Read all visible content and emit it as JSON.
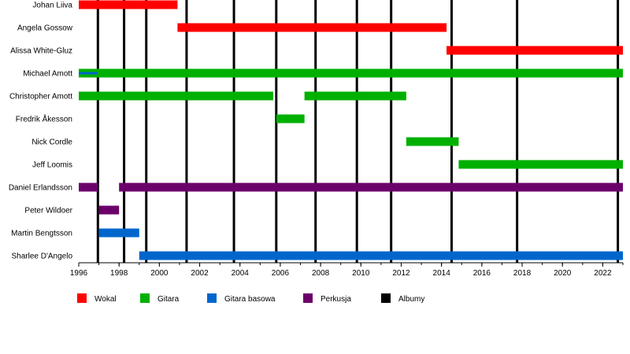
{
  "chart_data": {
    "type": "timeline",
    "members": [
      "Johan Liiva",
      "Angela Gossow",
      "Alissa White-Gluz",
      "Michael Amott",
      "Christopher Amott",
      "Fredrik Åkesson",
      "Nick Cordle",
      "Jeff Loomis",
      "Daniel Erlandsson",
      "Peter Wildoer",
      "Martin Bengtsson",
      "Sharlee D'Angelo"
    ],
    "xlim": [
      1996,
      2023
    ],
    "x_ticks": [
      1996,
      1998,
      2000,
      2002,
      2004,
      2006,
      2008,
      2010,
      2012,
      2014,
      2016,
      2018,
      2020,
      2022
    ],
    "x_tick_labels": [
      "1996",
      "1998",
      "2000",
      "2002",
      "2004",
      "2006",
      "2008",
      "2010",
      "2012",
      "2014",
      "2016",
      "2018",
      "2020",
      "2022"
    ],
    "colors": {
      "Wokal": "#ff0000",
      "Gitara": "#00b000",
      "Gitara basowa": "#0066cc",
      "Perkusja": "#6b006b",
      "Albumy": "#000000"
    },
    "legend": [
      "Wokal",
      "Gitara",
      "Gitara basowa",
      "Perkusja",
      "Albumy"
    ],
    "albums": [
      1996.95,
      1998.25,
      1999.35,
      2001.35,
      2003.7,
      2005.8,
      2007.75,
      2009.8,
      2011.5,
      2014.5,
      2017.75,
      2022.75
    ],
    "bars": [
      {
        "member": 0,
        "role": "Wokal",
        "start": 1996.0,
        "end": 2000.9
      },
      {
        "member": 1,
        "role": "Wokal",
        "start": 2000.9,
        "end": 2014.25
      },
      {
        "member": 2,
        "role": "Wokal",
        "start": 2014.25,
        "end": 2023.0
      },
      {
        "member": 3,
        "role": "Gitara",
        "start": 1996.0,
        "end": 2023.0
      },
      {
        "member": 3,
        "role": "Gitara basowa",
        "start": 1996.0,
        "end": 1996.95,
        "thin": true
      },
      {
        "member": 4,
        "role": "Gitara",
        "start": 1996.0,
        "end": 2005.65
      },
      {
        "member": 4,
        "role": "Gitara",
        "start": 2007.2,
        "end": 2012.25
      },
      {
        "member": 5,
        "role": "Gitara",
        "start": 2005.8,
        "end": 2007.2
      },
      {
        "member": 6,
        "role": "Gitara",
        "start": 2012.25,
        "end": 2014.85
      },
      {
        "member": 7,
        "role": "Gitara",
        "start": 2014.85,
        "end": 2023.0
      },
      {
        "member": 8,
        "role": "Perkusja",
        "start": 1996.0,
        "end": 1996.95
      },
      {
        "member": 8,
        "role": "Perkusja",
        "start": 1998.0,
        "end": 2023.0
      },
      {
        "member": 9,
        "role": "Perkusja",
        "start": 1997.0,
        "end": 1998.0
      },
      {
        "member": 10,
        "role": "Gitara basowa",
        "start": 1997.0,
        "end": 1999.0
      },
      {
        "member": 11,
        "role": "Gitara basowa",
        "start": 1999.0,
        "end": 2023.0
      }
    ]
  }
}
